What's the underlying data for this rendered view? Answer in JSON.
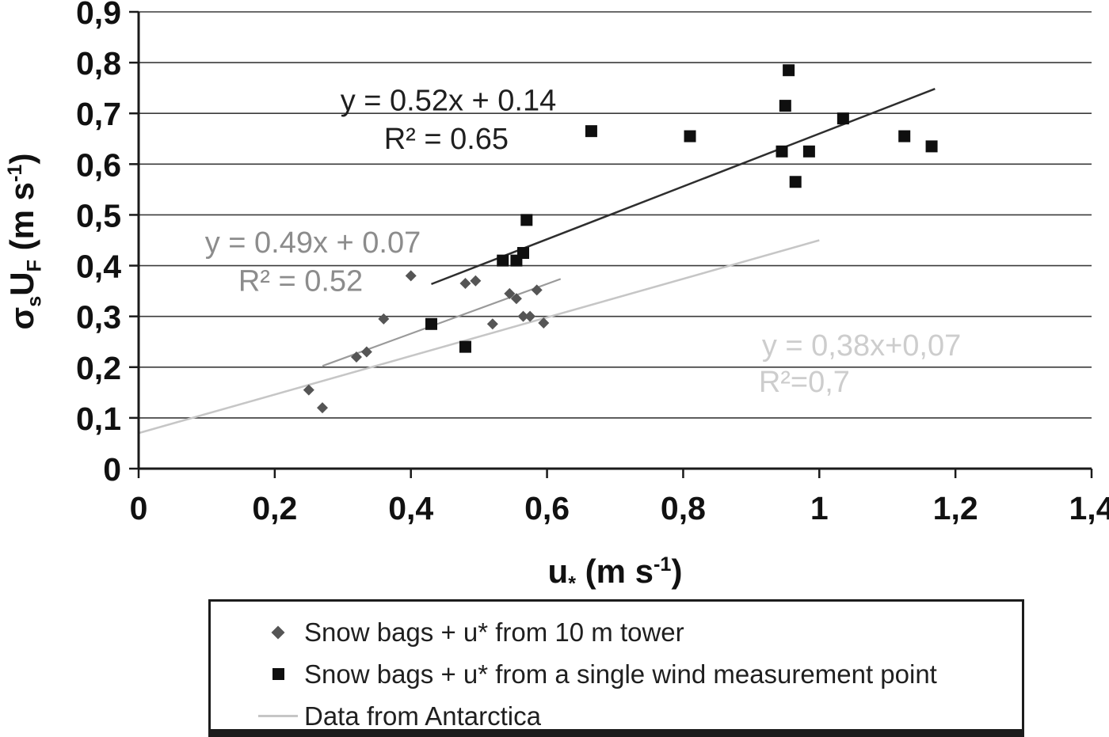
{
  "axes": {
    "y_title": {
      "sym": "σ",
      "sym_sub": "s",
      "var": "U",
      "var_sub": "F",
      "unit_open": " (m s",
      "unit_sup": "-1",
      "unit_close": ")"
    },
    "x_title": {
      "var": "u",
      "var_sub": "*",
      "unit_open": " (m s",
      "unit_sup": "-1",
      "unit_close": ")"
    }
  },
  "legend": {
    "items": [
      {
        "marker": "diamond",
        "color": "#555555",
        "label": "Snow bags + u* from 10 m tower"
      },
      {
        "marker": "square",
        "color": "#0f0f0f",
        "label": "Snow bags + u* from a single wind measurement point"
      },
      {
        "marker": "line",
        "color": "#c6c6c6",
        "label": "Data from Antarctica"
      }
    ]
  },
  "chart_data": {
    "type": "scatter",
    "title": "",
    "xlabel": "u* (m s-1)",
    "ylabel": "σs UF (m s-1)",
    "xlim": [
      0,
      1.4
    ],
    "ylim": [
      0,
      0.9
    ],
    "grid": "horizontal",
    "legend_position": "bottom",
    "x_tick_values": [
      0,
      0.2,
      0.4,
      0.6,
      0.8,
      1,
      1.2,
      1.4
    ],
    "x_tick_labels": [
      "0",
      "0,2",
      "0,4",
      "0,6",
      "0,8",
      "1",
      "1,2",
      "1,4"
    ],
    "y_tick_values": [
      0,
      0.1,
      0.2,
      0.3,
      0.4,
      0.5,
      0.6,
      0.7,
      0.8,
      0.9
    ],
    "y_tick_labels": [
      "0",
      "0,1",
      "0,2",
      "0,3",
      "0,4",
      "0,5",
      "0,6",
      "0,7",
      "0,8",
      "0,9"
    ],
    "style": {
      "grid_color": "#3a3a3a",
      "axis_color": "#1a1a1a",
      "text_color": "#111111",
      "background": "#ffffff"
    },
    "series": [
      {
        "name": "Snow bags + u* from 10 m tower",
        "marker": "diamond",
        "color": "#555555",
        "points": [
          [
            0.25,
            0.155
          ],
          [
            0.27,
            0.12
          ],
          [
            0.32,
            0.22
          ],
          [
            0.335,
            0.23
          ],
          [
            0.36,
            0.295
          ],
          [
            0.4,
            0.38
          ],
          [
            0.43,
            0.285
          ],
          [
            0.48,
            0.365
          ],
          [
            0.495,
            0.37
          ],
          [
            0.52,
            0.285
          ],
          [
            0.545,
            0.345
          ],
          [
            0.555,
            0.335
          ],
          [
            0.565,
            0.3
          ],
          [
            0.575,
            0.3
          ],
          [
            0.585,
            0.352
          ],
          [
            0.595,
            0.287
          ]
        ]
      },
      {
        "name": "Snow bags + u* from a single wind measurement point",
        "marker": "square",
        "color": "#0f0f0f",
        "points": [
          [
            0.43,
            0.285
          ],
          [
            0.48,
            0.24
          ],
          [
            0.535,
            0.41
          ],
          [
            0.555,
            0.41
          ],
          [
            0.565,
            0.425
          ],
          [
            0.57,
            0.49
          ],
          [
            0.665,
            0.665
          ],
          [
            0.81,
            0.655
          ],
          [
            0.945,
            0.625
          ],
          [
            0.95,
            0.715
          ],
          [
            0.955,
            0.785
          ],
          [
            0.965,
            0.565
          ],
          [
            0.985,
            0.625
          ],
          [
            1.035,
            0.69
          ],
          [
            1.125,
            0.655
          ],
          [
            1.165,
            0.635
          ]
        ]
      }
    ],
    "trend_lines": [
      {
        "name": "single-point-fit",
        "equation": "y = 0.52x + 0.14",
        "r2": 0.65,
        "slope": 0.52,
        "intercept": 0.14,
        "x_range": [
          0.43,
          1.17
        ],
        "color": "#2e2e2e",
        "width": 2.5
      },
      {
        "name": "tower-fit",
        "equation": "y = 0.49x + 0.07",
        "r2": 0.52,
        "slope": 0.49,
        "intercept": 0.07,
        "x_range": [
          0.27,
          0.62
        ],
        "color": "#9a9a9a",
        "width": 2.2
      },
      {
        "name": "antarctica",
        "equation": "y = 0,38x+0,07",
        "r2": 0.7,
        "slope": 0.38,
        "intercept": 0.07,
        "x_range": [
          0,
          1.0
        ],
        "color": "#c6c6c6",
        "width": 2.5
      }
    ],
    "annotations": [
      {
        "text": "y = 0.52x + 0.14",
        "x": 0.455,
        "y": 0.728,
        "color": "#1f1f1f",
        "size": 38
      },
      {
        "text": "R² = 0.65",
        "x": 0.452,
        "y": 0.652,
        "color": "#1f1f1f",
        "size": 38
      },
      {
        "text": "y = 0.49x + 0.07",
        "x": 0.256,
        "y": 0.448,
        "color": "#8c8c8c",
        "size": 38
      },
      {
        "text": "R² = 0.52",
        "x": 0.238,
        "y": 0.372,
        "color": "#8c8c8c",
        "size": 38
      },
      {
        "text": "y = 0,38x+0,07",
        "x": 1.062,
        "y": 0.245,
        "color": "#cdcdcd",
        "size": 38
      },
      {
        "text": "R²=0,7",
        "x": 0.978,
        "y": 0.173,
        "color": "#cdcdcd",
        "size": 38
      }
    ]
  }
}
